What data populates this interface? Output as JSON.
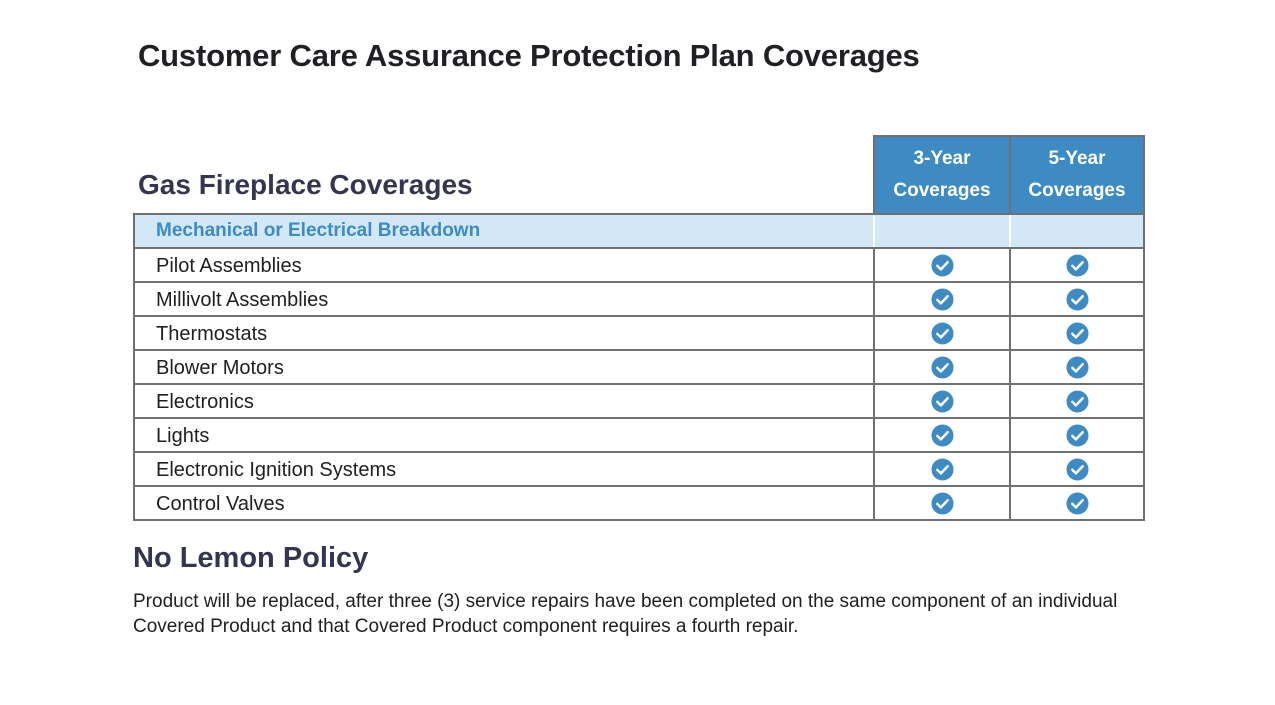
{
  "page": {
    "title": "Customer Care Assurance Protection Plan Coverages"
  },
  "table": {
    "section_title": "Gas Fireplace Coverages",
    "columns": [
      {
        "line1": "3-Year",
        "line2": "Coverages"
      },
      {
        "line1": "5-Year",
        "line2": "Coverages"
      }
    ],
    "category": "Mechanical or Electrical Breakdown",
    "rows": [
      {
        "label": "Pilot Assemblies",
        "covered_3yr": true,
        "covered_5yr": true
      },
      {
        "label": "Millivolt Assemblies",
        "covered_3yr": true,
        "covered_5yr": true
      },
      {
        "label": "Thermostats",
        "covered_3yr": true,
        "covered_5yr": true
      },
      {
        "label": "Blower Motors",
        "covered_3yr": true,
        "covered_5yr": true
      },
      {
        "label": "Electronics",
        "covered_3yr": true,
        "covered_5yr": true
      },
      {
        "label": "Lights",
        "covered_3yr": true,
        "covered_5yr": true
      },
      {
        "label": "Electronic Ignition Systems",
        "covered_3yr": true,
        "covered_5yr": true
      },
      {
        "label": "Control Valves",
        "covered_3yr": true,
        "covered_5yr": true
      }
    ],
    "check_icon": "check-circle-icon",
    "header_color": "#3d8bc2",
    "category_bg": "#d3e8f6",
    "check_color": "#3d8bc2"
  },
  "policy": {
    "title": "No Lemon Policy",
    "text": "Product will be replaced, after three (3) service repairs have been completed on the same component of an individual Covered Product and that Covered Product component requires a fourth repair."
  }
}
